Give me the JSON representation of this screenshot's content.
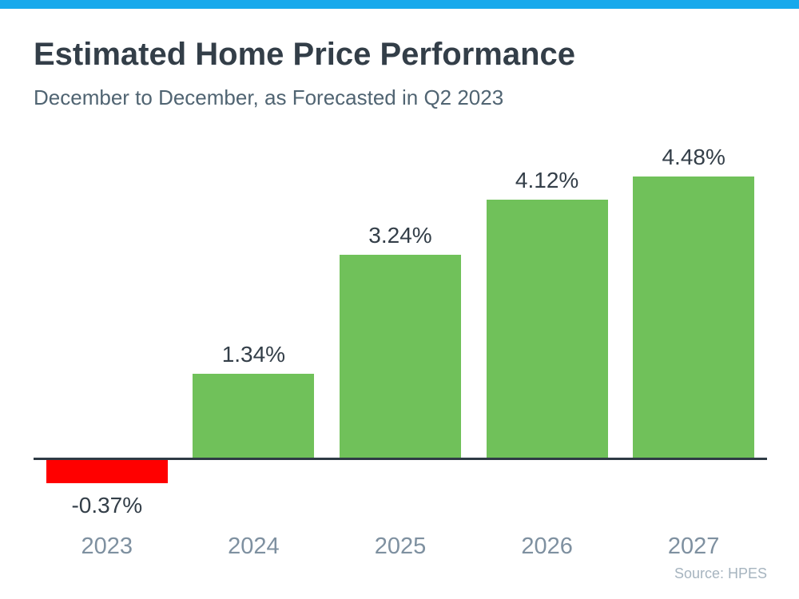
{
  "page": {
    "background_color": "#ffffff",
    "top_bar_color": "#17A9EC"
  },
  "header": {
    "title": "Estimated Home Price Performance",
    "subtitle": "December to December, as Forecasted in Q2 2023",
    "title_color": "#333E48",
    "subtitle_color": "#506472"
  },
  "source_note": "Source: HPES",
  "source_note_color": "#A6B4BF",
  "chart_data": {
    "type": "bar",
    "title": "Estimated Home Price Performance",
    "subtitle": "December to December, as Forecasted in Q2 2023",
    "categories": [
      "2023",
      "2024",
      "2025",
      "2026",
      "2027"
    ],
    "values": [
      -0.37,
      1.34,
      3.24,
      4.12,
      4.48
    ],
    "value_labels": [
      "-0.37%",
      "1.34%",
      "3.24%",
      "4.12%",
      "4.48%"
    ],
    "xlabel": "",
    "ylabel": "",
    "ylim": [
      -0.6,
      5.0
    ],
    "grid": false,
    "legend": "none",
    "baseline": 0,
    "positive_color": "#70C15A",
    "negative_color": "#FF0000",
    "axis_line_color": "#2E3A45",
    "value_label_color": "#333E48",
    "category_label_color": "#7E90A0",
    "source": "Source: HPES"
  }
}
